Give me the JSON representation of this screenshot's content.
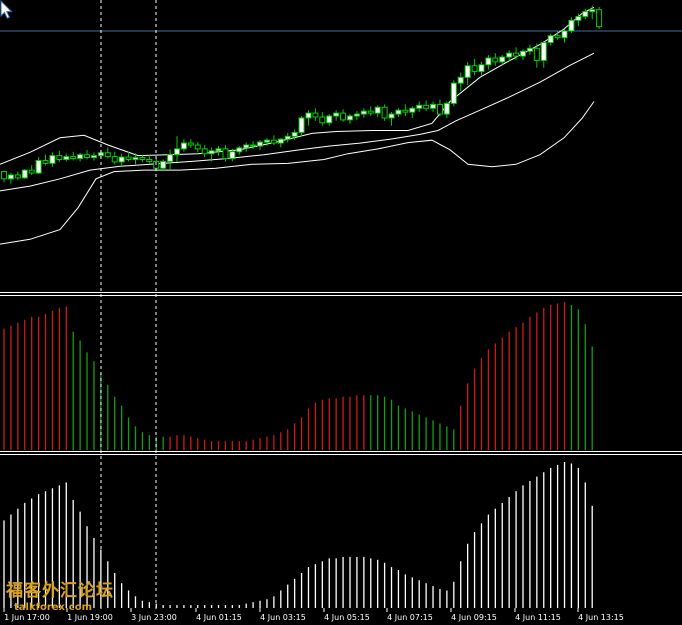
{
  "colors": {
    "background": "#000000",
    "bull_candle": "#ffffff",
    "candle_outline": "#00d000",
    "band": "#ffffff",
    "hist_up": "#d01818",
    "hist_down": "#10a010",
    "hist2": "#ffffff",
    "separator": "#ffffff",
    "grid_line": "#4a6a9a",
    "watermark": "#d8a020"
  },
  "watermark": {
    "chinese_text": "福客外汇论坛",
    "domain_text": "talkforex.com"
  },
  "cursor": {
    "icon": "arrow-cursor-icon"
  },
  "chart_data": [
    {
      "type": "candlestick",
      "panel": "main",
      "candles": [
        [
          0.545,
          0.547,
          0.523,
          0.53
        ],
        [
          0.53,
          0.542,
          0.52,
          0.538
        ],
        [
          0.538,
          0.545,
          0.527,
          0.532
        ],
        [
          0.532,
          0.55,
          0.53,
          0.548
        ],
        [
          0.548,
          0.558,
          0.538,
          0.542
        ],
        [
          0.542,
          0.575,
          0.54,
          0.568
        ],
        [
          0.568,
          0.58,
          0.558,
          0.562
        ],
        [
          0.562,
          0.585,
          0.555,
          0.578
        ],
        [
          0.578,
          0.588,
          0.565,
          0.57
        ],
        [
          0.57,
          0.582,
          0.566,
          0.576
        ],
        [
          0.576,
          0.586,
          0.568,
          0.572
        ],
        [
          0.572,
          0.584,
          0.566,
          0.58
        ],
        [
          0.58,
          0.59,
          0.57,
          0.574
        ],
        [
          0.574,
          0.585,
          0.568,
          0.578
        ],
        [
          0.578,
          0.59,
          0.573,
          0.584
        ],
        [
          0.584,
          0.595,
          0.572,
          0.576
        ],
        [
          0.576,
          0.586,
          0.56,
          0.565
        ],
        [
          0.565,
          0.582,
          0.556,
          0.575
        ],
        [
          0.575,
          0.586,
          0.566,
          0.57
        ],
        [
          0.57,
          0.583,
          0.56,
          0.574
        ],
        [
          0.574,
          0.58,
          0.565,
          0.57
        ],
        [
          0.57,
          0.579,
          0.562,
          0.566
        ],
        [
          0.566,
          0.574,
          0.548,
          0.552
        ],
        [
          0.552,
          0.57,
          0.548,
          0.566
        ],
        [
          0.566,
          0.59,
          0.55,
          0.58
        ],
        [
          0.58,
          0.618,
          0.565,
          0.592
        ],
        [
          0.592,
          0.612,
          0.586,
          0.604
        ],
        [
          0.604,
          0.612,
          0.594,
          0.6
        ],
        [
          0.6,
          0.606,
          0.585,
          0.592
        ],
        [
          0.592,
          0.6,
          0.575,
          0.582
        ],
        [
          0.582,
          0.595,
          0.566,
          0.588
        ],
        [
          0.588,
          0.598,
          0.578,
          0.592
        ],
        [
          0.592,
          0.6,
          0.566,
          0.572
        ],
        [
          0.572,
          0.592,
          0.566,
          0.586
        ],
        [
          0.586,
          0.598,
          0.58,
          0.594
        ],
        [
          0.594,
          0.605,
          0.586,
          0.6
        ],
        [
          0.6,
          0.608,
          0.592,
          0.598
        ],
        [
          0.598,
          0.61,
          0.59,
          0.606
        ],
        [
          0.606,
          0.614,
          0.598,
          0.61
        ],
        [
          0.61,
          0.62,
          0.6,
          0.604
        ],
        [
          0.604,
          0.614,
          0.595,
          0.612
        ],
        [
          0.612,
          0.625,
          0.605,
          0.618
        ],
        [
          0.618,
          0.632,
          0.61,
          0.626
        ],
        [
          0.626,
          0.66,
          0.618,
          0.656
        ],
        [
          0.656,
          0.672,
          0.64,
          0.666
        ],
        [
          0.666,
          0.676,
          0.65,
          0.658
        ],
        [
          0.658,
          0.668,
          0.64,
          0.646
        ],
        [
          0.646,
          0.664,
          0.64,
          0.66
        ],
        [
          0.66,
          0.672,
          0.65,
          0.666
        ],
        [
          0.666,
          0.674,
          0.648,
          0.652
        ],
        [
          0.652,
          0.664,
          0.644,
          0.66
        ],
        [
          0.66,
          0.67,
          0.652,
          0.664
        ],
        [
          0.664,
          0.676,
          0.656,
          0.67
        ],
        [
          0.67,
          0.68,
          0.66,
          0.666
        ],
        [
          0.666,
          0.682,
          0.658,
          0.678
        ],
        [
          0.678,
          0.684,
          0.65,
          0.656
        ],
        [
          0.656,
          0.668,
          0.64,
          0.664
        ],
        [
          0.664,
          0.676,
          0.658,
          0.672
        ],
        [
          0.672,
          0.684,
          0.66,
          0.668
        ],
        [
          0.668,
          0.68,
          0.656,
          0.676
        ],
        [
          0.676,
          0.69,
          0.668,
          0.682
        ],
        [
          0.682,
          0.692,
          0.67,
          0.676
        ],
        [
          0.676,
          0.69,
          0.668,
          0.684
        ],
        [
          0.684,
          0.694,
          0.66,
          0.664
        ],
        [
          0.664,
          0.69,
          0.656,
          0.686
        ],
        [
          0.686,
          0.734,
          0.68,
          0.728
        ],
        [
          0.728,
          0.75,
          0.712,
          0.74
        ],
        [
          0.74,
          0.772,
          0.724,
          0.764
        ],
        [
          0.764,
          0.778,
          0.744,
          0.752
        ],
        [
          0.752,
          0.772,
          0.744,
          0.766
        ],
        [
          0.766,
          0.786,
          0.756,
          0.78
        ],
        [
          0.78,
          0.79,
          0.764,
          0.772
        ],
        [
          0.772,
          0.786,
          0.766,
          0.782
        ],
        [
          0.782,
          0.796,
          0.774,
          0.79
        ],
        [
          0.79,
          0.802,
          0.776,
          0.784
        ],
        [
          0.784,
          0.798,
          0.776,
          0.794
        ],
        [
          0.794,
          0.808,
          0.786,
          0.8
        ],
        [
          0.8,
          0.81,
          0.76,
          0.775
        ],
        [
          0.775,
          0.815,
          0.76,
          0.812
        ],
        [
          0.812,
          0.83,
          0.806,
          0.826
        ],
        [
          0.826,
          0.836,
          0.818,
          0.822
        ],
        [
          0.822,
          0.84,
          0.812,
          0.836
        ],
        [
          0.836,
          0.864,
          0.832,
          0.858
        ],
        [
          0.858,
          0.872,
          0.846,
          0.866
        ],
        [
          0.866,
          0.882,
          0.86,
          0.876
        ],
        [
          0.876,
          0.888,
          0.86,
          0.88
        ],
        [
          0.88,
          0.886,
          0.84,
          0.845
        ]
      ],
      "bollinger": {
        "upper": [
          [
            0,
            0.56
          ],
          [
            0.05,
            0.585
          ],
          [
            0.1,
            0.615
          ],
          [
            0.14,
            0.62
          ],
          [
            0.18,
            0.6
          ],
          [
            0.23,
            0.578
          ],
          [
            0.28,
            0.58
          ],
          [
            0.33,
            0.582
          ],
          [
            0.4,
            0.59
          ],
          [
            0.46,
            0.606
          ],
          [
            0.52,
            0.624
          ],
          [
            0.56,
            0.628
          ],
          [
            0.62,
            0.63
          ],
          [
            0.68,
            0.63
          ],
          [
            0.72,
            0.645
          ],
          [
            0.75,
            0.69
          ],
          [
            0.8,
            0.74
          ],
          [
            0.85,
            0.775
          ],
          [
            0.9,
            0.808
          ],
          [
            0.94,
            0.84
          ],
          [
            0.97,
            0.872
          ],
          [
            0.99,
            0.885
          ]
        ],
        "middle": [
          [
            0,
            0.505
          ],
          [
            0.05,
            0.515
          ],
          [
            0.1,
            0.53
          ],
          [
            0.15,
            0.548
          ],
          [
            0.2,
            0.556
          ],
          [
            0.25,
            0.56
          ],
          [
            0.32,
            0.566
          ],
          [
            0.38,
            0.572
          ],
          [
            0.44,
            0.58
          ],
          [
            0.5,
            0.59
          ],
          [
            0.55,
            0.598
          ],
          [
            0.6,
            0.604
          ],
          [
            0.65,
            0.612
          ],
          [
            0.7,
            0.622
          ],
          [
            0.73,
            0.63
          ],
          [
            0.76,
            0.65
          ],
          [
            0.8,
            0.672
          ],
          [
            0.85,
            0.7
          ],
          [
            0.9,
            0.73
          ],
          [
            0.95,
            0.765
          ],
          [
            0.99,
            0.79
          ]
        ],
        "lower": [
          [
            0,
            0.395
          ],
          [
            0.05,
            0.405
          ],
          [
            0.1,
            0.425
          ],
          [
            0.13,
            0.47
          ],
          [
            0.16,
            0.53
          ],
          [
            0.19,
            0.545
          ],
          [
            0.24,
            0.548
          ],
          [
            0.3,
            0.548
          ],
          [
            0.36,
            0.552
          ],
          [
            0.42,
            0.56
          ],
          [
            0.48,
            0.562
          ],
          [
            0.54,
            0.57
          ],
          [
            0.58,
            0.582
          ],
          [
            0.63,
            0.592
          ],
          [
            0.68,
            0.605
          ],
          [
            0.72,
            0.61
          ],
          [
            0.75,
            0.59
          ],
          [
            0.78,
            0.56
          ],
          [
            0.82,
            0.555
          ],
          [
            0.86,
            0.56
          ],
          [
            0.9,
            0.58
          ],
          [
            0.94,
            0.615
          ],
          [
            0.97,
            0.655
          ],
          [
            0.99,
            0.69
          ]
        ]
      }
    },
    {
      "type": "bar",
      "panel": "histogram",
      "values": [
        0.82,
        0.84,
        0.86,
        0.88,
        0.9,
        0.9,
        0.92,
        0.94,
        0.96,
        0.97,
        0.8,
        0.74,
        0.66,
        0.6,
        0.52,
        0.44,
        0.36,
        0.3,
        0.22,
        0.16,
        0.12,
        0.1,
        0.09,
        0.09,
        0.09,
        0.1,
        0.1,
        0.09,
        0.08,
        0.07,
        0.06,
        0.06,
        0.06,
        0.06,
        0.06,
        0.06,
        0.07,
        0.08,
        0.09,
        0.1,
        0.12,
        0.14,
        0.18,
        0.22,
        0.28,
        0.32,
        0.34,
        0.35,
        0.35,
        0.36,
        0.36,
        0.37,
        0.37,
        0.37,
        0.37,
        0.36,
        0.34,
        0.3,
        0.28,
        0.26,
        0.24,
        0.22,
        0.2,
        0.18,
        0.16,
        0.14,
        0.3,
        0.45,
        0.55,
        0.62,
        0.68,
        0.72,
        0.76,
        0.8,
        0.83,
        0.86,
        0.9,
        0.93,
        0.96,
        0.98,
        0.99,
        1.0,
        0.98,
        0.95,
        0.85,
        0.7
      ],
      "direction": [
        1,
        1,
        1,
        1,
        1,
        1,
        1,
        1,
        1,
        1,
        -1,
        -1,
        -1,
        -1,
        -1,
        -1,
        -1,
        -1,
        -1,
        -1,
        -1,
        -1,
        -1,
        -1,
        1,
        1,
        1,
        1,
        1,
        1,
        1,
        1,
        1,
        1,
        1,
        1,
        1,
        1,
        1,
        1,
        1,
        1,
        1,
        1,
        1,
        1,
        1,
        1,
        1,
        1,
        1,
        1,
        1,
        -1,
        -1,
        -1,
        -1,
        -1,
        -1,
        -1,
        -1,
        -1,
        -1,
        -1,
        -1,
        -1,
        1,
        1,
        1,
        1,
        1,
        1,
        1,
        1,
        1,
        1,
        1,
        1,
        1,
        1,
        1,
        1,
        -1,
        -1,
        -1,
        -1
      ]
    },
    {
      "type": "bar",
      "panel": "lower",
      "values": [
        0.6,
        0.64,
        0.68,
        0.72,
        0.75,
        0.78,
        0.8,
        0.82,
        0.84,
        0.86,
        0.74,
        0.66,
        0.56,
        0.48,
        0.4,
        0.32,
        0.24,
        0.17,
        0.12,
        0.08,
        0.05,
        0.04,
        0.03,
        0.02,
        0.02,
        0.02,
        0.02,
        0.02,
        0.02,
        0.02,
        0.02,
        0.02,
        0.02,
        0.02,
        0.02,
        0.03,
        0.04,
        0.05,
        0.06,
        0.08,
        0.12,
        0.16,
        0.2,
        0.24,
        0.28,
        0.3,
        0.32,
        0.34,
        0.34,
        0.35,
        0.35,
        0.35,
        0.35,
        0.34,
        0.33,
        0.31,
        0.28,
        0.26,
        0.23,
        0.21,
        0.19,
        0.17,
        0.15,
        0.13,
        0.12,
        0.18,
        0.32,
        0.44,
        0.52,
        0.58,
        0.64,
        0.68,
        0.72,
        0.76,
        0.8,
        0.84,
        0.87,
        0.9,
        0.93,
        0.96,
        0.98,
        1.0,
        0.99,
        0.96,
        0.86,
        0.7
      ]
    }
  ],
  "time_axis": {
    "labels": [
      "1 Jun 17:00",
      "1 Jun 19:00",
      "3 Jun 23:00",
      "4 Jun 01:15",
      "4 Jun 03:15",
      "4 Jun 05:15",
      "4 Jun 07:15",
      "4 Jun 09:15",
      "4 Jun 11:15",
      "4 Jun 13:15"
    ]
  }
}
